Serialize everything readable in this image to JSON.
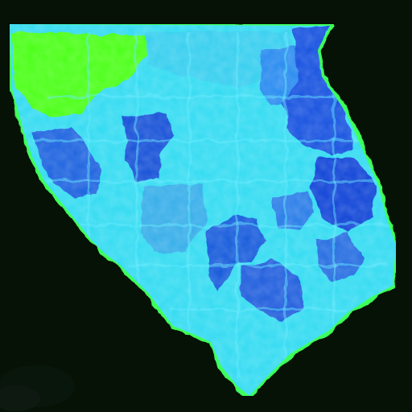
{
  "map": {
    "background_color": "#061206",
    "outline_color": "#3dff5a",
    "base_fill_color": "#38dcf2",
    "highlight_fill_color": "#5ee9ff",
    "regions": [
      {
        "id": "nw-zone",
        "color": "#4fff1a",
        "level": "very-low"
      },
      {
        "id": "north-center",
        "color": "#3ad0f0",
        "level": "low"
      },
      {
        "id": "north-east",
        "color": "#2f8ef0",
        "level": "medium"
      },
      {
        "id": "far-north-east",
        "color": "#1c56e0",
        "level": "high"
      },
      {
        "id": "east",
        "color": "#1848d8",
        "level": "high"
      },
      {
        "id": "central-west",
        "color": "#1b55d8",
        "level": "high"
      },
      {
        "id": "west",
        "color": "#2466e0",
        "level": "high"
      },
      {
        "id": "central",
        "color": "#3ab0ea",
        "level": "medium"
      },
      {
        "id": "east-center",
        "color": "#2e7fe8",
        "level": "medium"
      },
      {
        "id": "south-center",
        "color": "#1f5fdc",
        "level": "high"
      },
      {
        "id": "south",
        "color": "#2562de",
        "level": "high"
      },
      {
        "id": "south-east",
        "color": "#2a70e2",
        "level": "medium"
      }
    ]
  }
}
